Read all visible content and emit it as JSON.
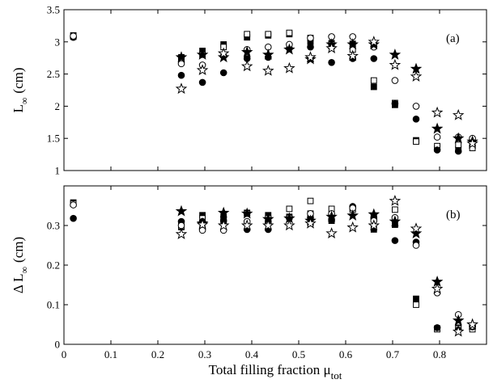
{
  "chart_data": [
    {
      "type": "scatter",
      "panel_label": "(a)",
      "ylabel": {
        "main": "L",
        "sub": "∞",
        "unit": "(cm)"
      },
      "xlim": [
        0,
        0.9
      ],
      "ylim": [
        1,
        3.5
      ],
      "yticks": [
        {
          "v": 1,
          "label": "1"
        },
        {
          "v": 1.5,
          "label": "1.5"
        },
        {
          "v": 2,
          "label": "2"
        },
        {
          "v": 2.5,
          "label": "2.5"
        },
        {
          "v": 3,
          "label": "3"
        },
        {
          "v": 3.5,
          "label": "3.5"
        }
      ],
      "series": [
        {
          "marker": "filled-square",
          "x": [
            0.02,
            0.25,
            0.295,
            0.34,
            0.39,
            0.435,
            0.48,
            0.525,
            0.57,
            0.615,
            0.66,
            0.705,
            0.75,
            0.795,
            0.84,
            0.87
          ],
          "y": [
            3.1,
            2.76,
            2.86,
            2.96,
            3.07,
            3.1,
            3.12,
            3.0,
            2.98,
            2.97,
            2.3,
            2.02,
            1.47,
            1.34,
            1.33,
            1.38
          ]
        },
        {
          "marker": "open-square",
          "x": [
            0.02,
            0.25,
            0.295,
            0.34,
            0.39,
            0.435,
            0.48,
            0.525,
            0.57,
            0.615,
            0.66,
            0.705,
            0.75,
            0.795,
            0.84,
            0.87
          ],
          "y": [
            3.08,
            2.72,
            2.8,
            2.92,
            3.12,
            3.12,
            3.14,
            3.06,
            2.96,
            2.88,
            2.4,
            2.05,
            1.45,
            1.38,
            1.4,
            1.35
          ]
        },
        {
          "marker": "filled-circle",
          "x": [
            0.02,
            0.25,
            0.295,
            0.34,
            0.39,
            0.435,
            0.48,
            0.525,
            0.57,
            0.615,
            0.66,
            0.705,
            0.75,
            0.795,
            0.84,
            0.87
          ],
          "y": [
            3.07,
            2.48,
            2.37,
            2.52,
            2.74,
            2.76,
            2.9,
            2.92,
            2.68,
            2.74,
            2.74,
            2.04,
            1.8,
            1.32,
            1.3,
            1.46
          ]
        },
        {
          "marker": "open-circle",
          "x": [
            0.02,
            0.25,
            0.295,
            0.34,
            0.39,
            0.435,
            0.48,
            0.525,
            0.57,
            0.615,
            0.66,
            0.705,
            0.75,
            0.795,
            0.84,
            0.87
          ],
          "y": [
            3.09,
            2.66,
            2.64,
            2.78,
            2.88,
            2.92,
            2.96,
            3.06,
            3.08,
            3.08,
            2.92,
            2.4,
            2.0,
            1.52,
            1.52,
            1.5
          ]
        },
        {
          "marker": "filled-star",
          "x": [
            0.25,
            0.295,
            0.34,
            0.39,
            0.435,
            0.48,
            0.525,
            0.57,
            0.615,
            0.66,
            0.705,
            0.75,
            0.795,
            0.84,
            0.87
          ],
          "y": [
            2.76,
            2.8,
            2.76,
            2.84,
            2.8,
            2.88,
            2.73,
            2.96,
            2.96,
            2.96,
            2.8,
            2.58,
            1.65,
            1.5,
            1.45
          ]
        },
        {
          "marker": "open-star",
          "x": [
            0.25,
            0.295,
            0.34,
            0.39,
            0.435,
            0.48,
            0.525,
            0.57,
            0.615,
            0.66,
            0.705,
            0.75,
            0.795,
            0.84,
            0.87
          ],
          "y": [
            2.27,
            2.56,
            2.82,
            2.62,
            2.55,
            2.59,
            2.76,
            2.9,
            2.78,
            3.0,
            2.64,
            2.46,
            1.9,
            1.86,
            1.42
          ]
        }
      ]
    },
    {
      "type": "scatter",
      "panel_label": "(b)",
      "ylabel": {
        "main": "Δ L",
        "sub": "∞",
        "unit": "(cm)"
      },
      "xlabel": {
        "main": "Total filling fraction μ",
        "sub": "tot"
      },
      "xlim": [
        0,
        0.9
      ],
      "ylim": [
        0,
        0.4
      ],
      "xticks": [
        {
          "v": 0,
          "label": "0"
        },
        {
          "v": 0.1,
          "label": "0.1"
        },
        {
          "v": 0.2,
          "label": "0.2"
        },
        {
          "v": 0.3,
          "label": "0.3"
        },
        {
          "v": 0.4,
          "label": "0.4"
        },
        {
          "v": 0.5,
          "label": "0.5"
        },
        {
          "v": 0.6,
          "label": "0.6"
        },
        {
          "v": 0.7,
          "label": "0.7"
        },
        {
          "v": 0.8,
          "label": "0.8"
        }
      ],
      "yticks": [
        {
          "v": 0,
          "label": "0"
        },
        {
          "v": 0.1,
          "label": "0.1"
        },
        {
          "v": 0.2,
          "label": "0.2"
        },
        {
          "v": 0.3,
          "label": "0.3"
        }
      ],
      "series": [
        {
          "marker": "filled-square",
          "x": [
            0.02,
            0.25,
            0.295,
            0.34,
            0.39,
            0.435,
            0.48,
            0.525,
            0.57,
            0.615,
            0.66,
            0.705,
            0.75,
            0.795,
            0.84,
            0.87
          ],
          "y": [
            0.358,
            0.296,
            0.326,
            0.322,
            0.332,
            0.326,
            0.322,
            0.33,
            0.312,
            0.344,
            0.29,
            0.302,
            0.115,
            0.04,
            0.042,
            0.042
          ]
        },
        {
          "marker": "open-square",
          "x": [
            0.02,
            0.25,
            0.295,
            0.34,
            0.39,
            0.435,
            0.48,
            0.525,
            0.57,
            0.615,
            0.66,
            0.705,
            0.75,
            0.795,
            0.84,
            0.87
          ],
          "y": [
            0.355,
            0.298,
            0.318,
            0.31,
            0.33,
            0.318,
            0.342,
            0.362,
            0.342,
            0.34,
            0.322,
            0.34,
            0.1,
            0.038,
            0.04,
            0.038
          ]
        },
        {
          "marker": "filled-circle",
          "x": [
            0.02,
            0.25,
            0.295,
            0.34,
            0.39,
            0.435,
            0.48,
            0.525,
            0.57,
            0.615,
            0.66,
            0.705,
            0.75,
            0.795,
            0.84,
            0.87
          ],
          "y": [
            0.318,
            0.31,
            0.31,
            0.312,
            0.29,
            0.29,
            0.32,
            0.32,
            0.315,
            0.348,
            0.32,
            0.262,
            0.258,
            0.042,
            0.036,
            0.044
          ]
        },
        {
          "marker": "open-circle",
          "x": [
            0.02,
            0.25,
            0.295,
            0.34,
            0.39,
            0.435,
            0.48,
            0.525,
            0.57,
            0.615,
            0.66,
            0.705,
            0.75,
            0.795,
            0.84,
            0.87
          ],
          "y": [
            0.352,
            0.3,
            0.288,
            0.288,
            0.31,
            0.31,
            0.32,
            0.33,
            0.33,
            0.344,
            0.312,
            0.32,
            0.25,
            0.13,
            0.075,
            0.046
          ]
        },
        {
          "marker": "filled-star",
          "x": [
            0.25,
            0.295,
            0.34,
            0.39,
            0.435,
            0.48,
            0.525,
            0.57,
            0.615,
            0.66,
            0.705,
            0.75,
            0.795,
            0.84,
            0.87
          ],
          "y": [
            0.336,
            0.305,
            0.332,
            0.33,
            0.316,
            0.318,
            0.312,
            0.322,
            0.325,
            0.328,
            0.31,
            0.28,
            0.158,
            0.06,
            0.05
          ]
        },
        {
          "marker": "open-star",
          "x": [
            0.25,
            0.295,
            0.34,
            0.39,
            0.435,
            0.48,
            0.525,
            0.57,
            0.615,
            0.66,
            0.705,
            0.75,
            0.795,
            0.84,
            0.87
          ],
          "y": [
            0.278,
            0.302,
            0.3,
            0.3,
            0.3,
            0.3,
            0.305,
            0.28,
            0.295,
            0.3,
            0.362,
            0.292,
            0.14,
            0.032,
            0.05
          ]
        }
      ]
    }
  ]
}
